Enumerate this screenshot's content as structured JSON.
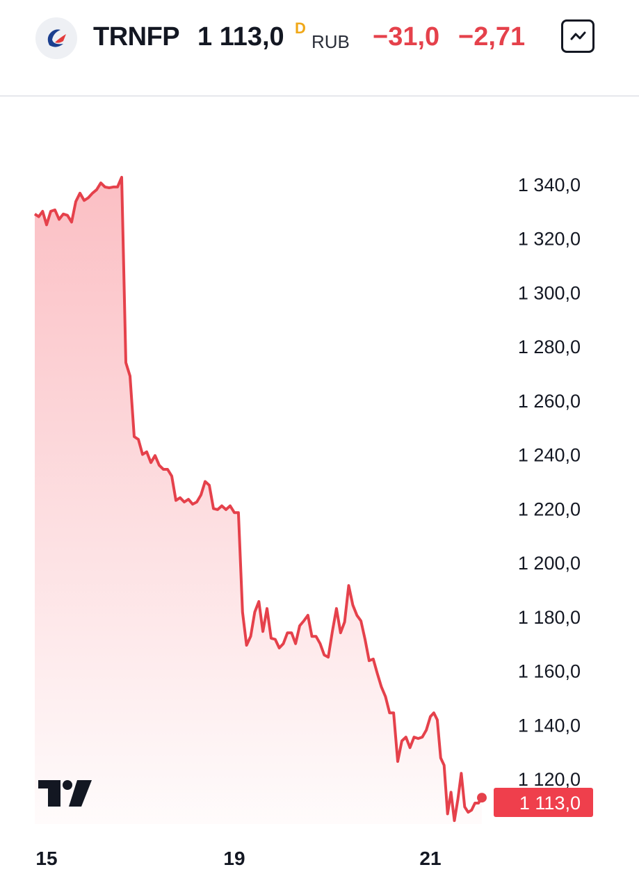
{
  "header": {
    "ticker": "TRNFP",
    "price": "1 113,0",
    "delay_mark": "D",
    "currency": "RUB",
    "change": "−31,0",
    "change_percent": "−2,71",
    "logo_icon": "transneft-logo-icon",
    "chart_button_icon": "line-chart-icon"
  },
  "colors": {
    "line": "#e5414b",
    "label_bg": "#ef3f4c",
    "delay": "#f0a818"
  },
  "chart_data": {
    "type": "area",
    "values": [
      1329,
      1328,
      1330,
      1325,
      1330,
      1330.5,
      1327,
      1329,
      1328.5,
      1326,
      1333.6,
      1336.7,
      1334,
      1335,
      1336.7,
      1338,
      1340.5,
      1339,
      1338.7,
      1339,
      1339,
      1342.6,
      1274,
      1269,
      1246.6,
      1245.6,
      1240,
      1241,
      1237,
      1239.6,
      1236,
      1234.5,
      1234.5,
      1232,
      1223,
      1224,
      1222.4,
      1223.4,
      1221.6,
      1222.4,
      1225,
      1230,
      1228.6,
      1220,
      1219.6,
      1221,
      1219.6,
      1221,
      1218.5,
      1218.5,
      1181.7,
      1169.4,
      1172.7,
      1181.7,
      1185.6,
      1174.5,
      1183,
      1172,
      1171.6,
      1168.4,
      1170,
      1174,
      1174,
      1170,
      1176.6,
      1178.4,
      1180.5,
      1172.7,
      1172.7,
      1170,
      1165.8,
      1165,
      1174.5,
      1183,
      1174,
      1178,
      1191.5,
      1184.3,
      1180.5,
      1178.4,
      1171.6,
      1163.7,
      1164.3,
      1159,
      1154,
      1150.4,
      1144.4,
      1144.4,
      1126.4,
      1134,
      1135.4,
      1131.5,
      1135.4,
      1134.9,
      1135.4,
      1138,
      1143,
      1144.4,
      1141.8,
      1127.7,
      1125,
      1107,
      1115,
      1104.5,
      1112.4,
      1122,
      1109.6,
      1107.6,
      1108.4,
      1111,
      1111,
      1113
    ],
    "x_ticks": [
      {
        "label": "15",
        "index": 3
      },
      {
        "label": "19",
        "index": 48
      },
      {
        "label": "21",
        "index": 96
      }
    ],
    "y_ticks": [
      "1 340,0",
      "1 320,0",
      "1 300,0",
      "1 280,0",
      "1 260,0",
      "1 240,0",
      "1 220,0",
      "1 200,0",
      "1 180,0",
      "1 160,0",
      "1 140,0",
      "1 120,0"
    ],
    "y_tick_values": [
      1340,
      1320,
      1300,
      1280,
      1260,
      1240,
      1220,
      1200,
      1180,
      1160,
      1140,
      1120
    ],
    "last_value_label": "1 113,0",
    "ylim": [
      1100,
      1350
    ],
    "grid": false,
    "watermark": "TradingView"
  }
}
